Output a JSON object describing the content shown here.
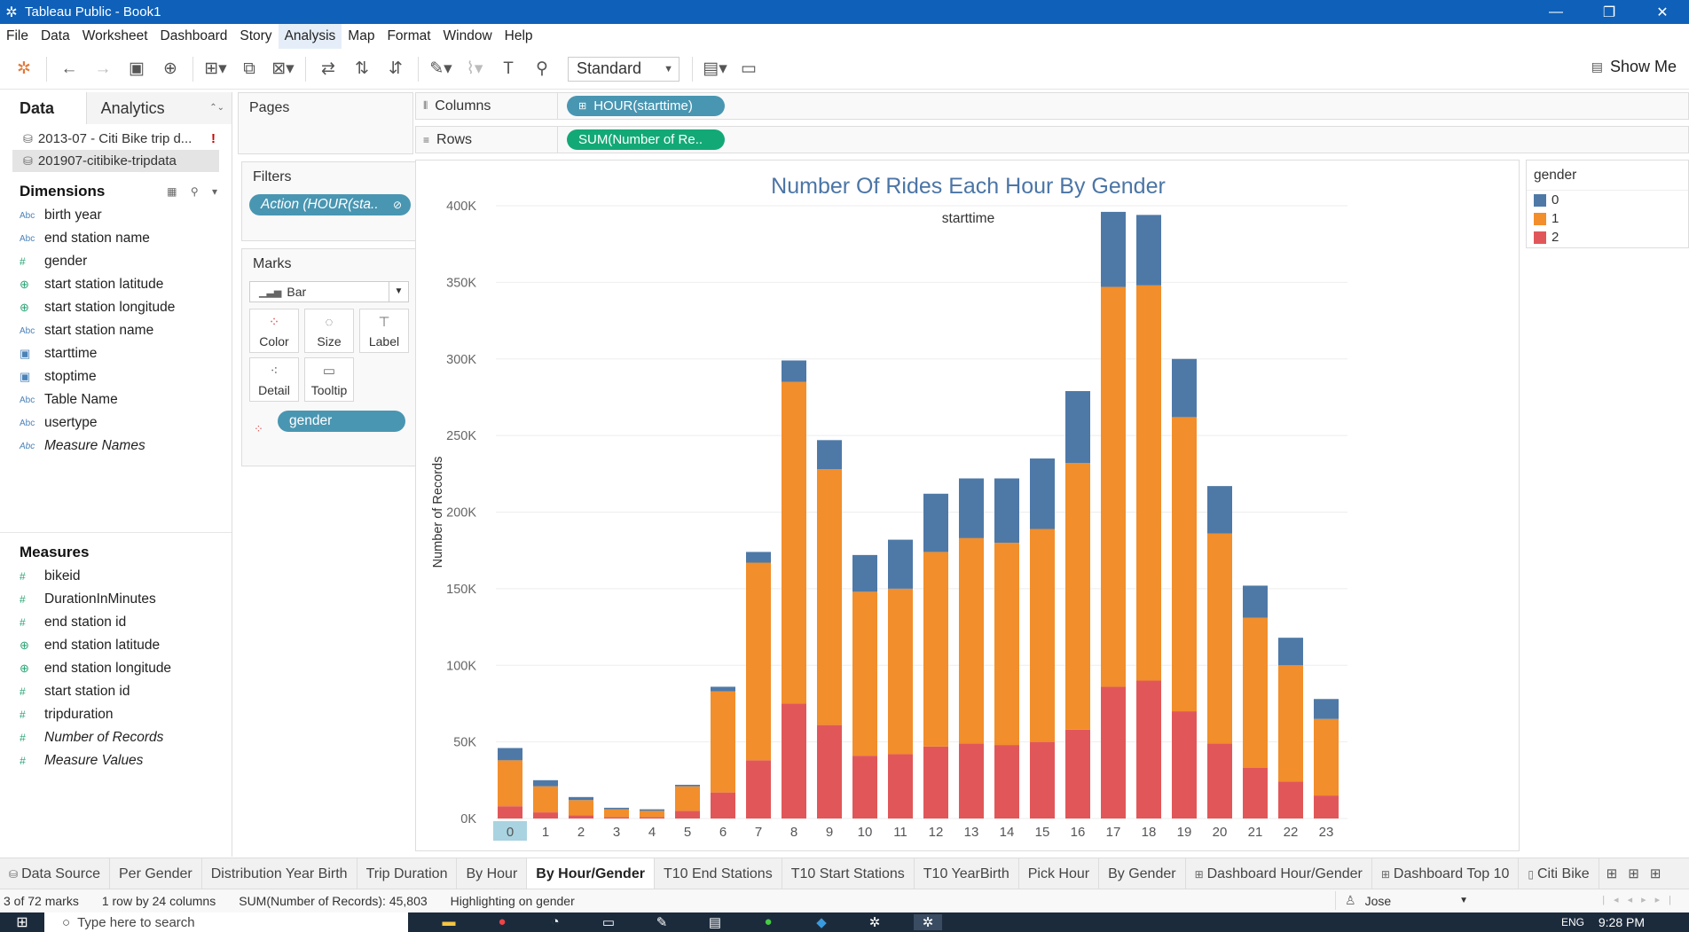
{
  "window": {
    "title": "Tableau Public - Book1",
    "controls": [
      "—",
      "❐",
      "✕"
    ]
  },
  "menu": [
    "File",
    "Data",
    "Worksheet",
    "Dashboard",
    "Story",
    "Analysis",
    "Map",
    "Format",
    "Window",
    "Help"
  ],
  "menu_active": "Analysis",
  "toolbar": {
    "fit_select": "Standard",
    "show_me": "Show Me"
  },
  "data_pane": {
    "tab_data": "Data",
    "tab_analytics": "Analytics",
    "sources": [
      "2013-07 - Citi Bike trip d...",
      "201907-citibike-tripdata"
    ],
    "source_warning": "!",
    "dimensions_title": "Dimensions",
    "dimensions": [
      {
        "icon": "Abc",
        "name": "birth year"
      },
      {
        "icon": "Abc",
        "name": "end station name"
      },
      {
        "icon": "#",
        "name": "gender"
      },
      {
        "icon": "⊕",
        "name": "start station latitude"
      },
      {
        "icon": "⊕",
        "name": "start station longitude"
      },
      {
        "icon": "Abc",
        "name": "start station name"
      },
      {
        "icon": "▣",
        "name": "starttime"
      },
      {
        "icon": "▣",
        "name": "stoptime"
      },
      {
        "icon": "Abc",
        "name": "Table Name"
      },
      {
        "icon": "Abc",
        "name": "usertype"
      },
      {
        "icon": "Abc",
        "name": "Measure Names"
      }
    ],
    "measures_title": "Measures",
    "measures": [
      {
        "icon": "#",
        "name": "bikeid"
      },
      {
        "icon": "#",
        "name": "DurationInMinutes"
      },
      {
        "icon": "#",
        "name": "end station id"
      },
      {
        "icon": "⊕",
        "name": "end station latitude"
      },
      {
        "icon": "⊕",
        "name": "end station longitude"
      },
      {
        "icon": "#",
        "name": "start station id"
      },
      {
        "icon": "#",
        "name": "tripduration"
      },
      {
        "icon": "#",
        "name": "Number of Records"
      },
      {
        "icon": "#",
        "name": "Measure Values"
      }
    ]
  },
  "cards": {
    "pages": "Pages",
    "filters": "Filters",
    "filter_pill": "Action (HOUR(sta..",
    "marks": "Marks",
    "mark_type": "Bar",
    "mark_buttons": [
      "Color",
      "Size",
      "Label",
      "Detail",
      "Tooltip"
    ],
    "marks_pill": "gender"
  },
  "shelves": {
    "columns_label": "Columns",
    "columns_pill": "HOUR(starttime)",
    "rows_label": "Rows",
    "rows_pill": "SUM(Number of Re.."
  },
  "legend": {
    "title": "gender",
    "items": [
      {
        "label": "0",
        "color": "#4e79a7"
      },
      {
        "label": "1",
        "color": "#f28e2b"
      },
      {
        "label": "2",
        "color": "#e15759"
      }
    ]
  },
  "chart_data": {
    "type": "bar",
    "stacked": true,
    "title": "Number Of Rides Each Hour By Gender",
    "subtitle": "starttime",
    "xlabel": "",
    "ylabel": "Number of Records",
    "ylim": [
      0,
      400000
    ],
    "yticks": [
      "0K",
      "50K",
      "100K",
      "150K",
      "200K",
      "250K",
      "300K",
      "350K",
      "400K"
    ],
    "categories": [
      "0",
      "1",
      "2",
      "3",
      "4",
      "5",
      "6",
      "7",
      "8",
      "9",
      "10",
      "11",
      "12",
      "13",
      "14",
      "15",
      "16",
      "17",
      "18",
      "19",
      "20",
      "21",
      "22",
      "23"
    ],
    "highlighted_category": "0",
    "series": [
      {
        "name": "2",
        "color": "#e15759",
        "values": [
          8000,
          4000,
          2000,
          1000,
          1000,
          5000,
          17000,
          38000,
          75000,
          61000,
          41000,
          42000,
          47000,
          49000,
          48000,
          50000,
          58000,
          86000,
          90000,
          70000,
          49000,
          33000,
          24000,
          15000
        ]
      },
      {
        "name": "1",
        "color": "#f28e2b",
        "values": [
          30000,
          17000,
          10000,
          5000,
          4000,
          16000,
          66000,
          129000,
          210000,
          167000,
          107000,
          108000,
          127000,
          134000,
          132000,
          139000,
          174000,
          261000,
          258000,
          192000,
          137000,
          98000,
          76000,
          50000
        ]
      },
      {
        "name": "0",
        "color": "#4e79a7",
        "values": [
          8000,
          4000,
          2000,
          1000,
          1000,
          1000,
          3000,
          7000,
          14000,
          19000,
          24000,
          32000,
          38000,
          39000,
          42000,
          46000,
          47000,
          49000,
          46000,
          38000,
          31000,
          21000,
          18000,
          13000
        ]
      }
    ]
  },
  "sheet_tabs": [
    {
      "label": "Data Source",
      "icon": "⛁"
    },
    {
      "label": "Per Gender"
    },
    {
      "label": "Distribution Year Birth"
    },
    {
      "label": "Trip Duration"
    },
    {
      "label": "By Hour"
    },
    {
      "label": "By Hour/Gender",
      "selected": true
    },
    {
      "label": "T10 End Stations"
    },
    {
      "label": "T10 Start Stations"
    },
    {
      "label": "T10 YearBirth"
    },
    {
      "label": "Pick Hour"
    },
    {
      "label": "By Gender"
    },
    {
      "label": "Dashboard Hour/Gender",
      "icon": "⊞"
    },
    {
      "label": "Dashboard Top 10",
      "icon": "⊞"
    },
    {
      "label": "Citi Bike",
      "icon": "▯"
    }
  ],
  "status": {
    "marks": "3 of 72 marks",
    "dims": "1 row by 24 columns",
    "sum": "SUM(Number of Records): 45,803",
    "highlight": "Highlighting on gender",
    "user": "Jose"
  },
  "taskbar": {
    "search_placeholder": "Type here to search",
    "lang": "ENG",
    "time": "9:28 PM"
  }
}
